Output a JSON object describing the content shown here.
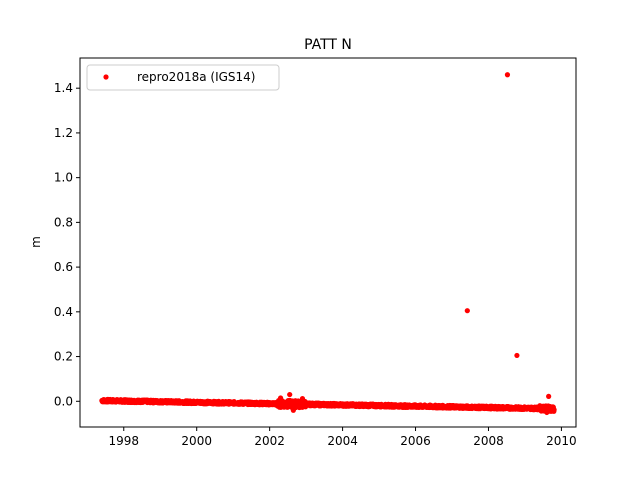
{
  "chart_data": {
    "type": "scatter",
    "title": "PATT N",
    "xlabel": "",
    "ylabel": "m",
    "xlim": [
      1996.8,
      2010.4
    ],
    "ylim": [
      -0.115,
      1.535
    ],
    "xticks": [
      1998,
      2000,
      2002,
      2004,
      2006,
      2008,
      2010
    ],
    "yticks": [
      0.0,
      0.2,
      0.4,
      0.6,
      0.8,
      1.0,
      1.2,
      1.4
    ],
    "grid": false,
    "legend_position": "upper-left",
    "series": [
      {
        "name": "repro2018a (IGS14)",
        "color": "#ff0000",
        "trend": {
          "x": [
            1997.4,
            2009.8
          ],
          "y": [
            0.003,
            -0.033
          ]
        },
        "outliers": [
          {
            "x": 2002.3,
            "y": 0.015
          },
          {
            "x": 2002.55,
            "y": 0.03
          },
          {
            "x": 2002.65,
            "y": -0.04
          },
          {
            "x": 2002.9,
            "y": 0.012
          },
          {
            "x": 2007.42,
            "y": 0.405
          },
          {
            "x": 2008.52,
            "y": 1.46
          },
          {
            "x": 2008.78,
            "y": 0.205
          },
          {
            "x": 2009.65,
            "y": 0.022
          },
          {
            "x": 2009.6,
            "y": -0.05
          }
        ]
      }
    ]
  }
}
